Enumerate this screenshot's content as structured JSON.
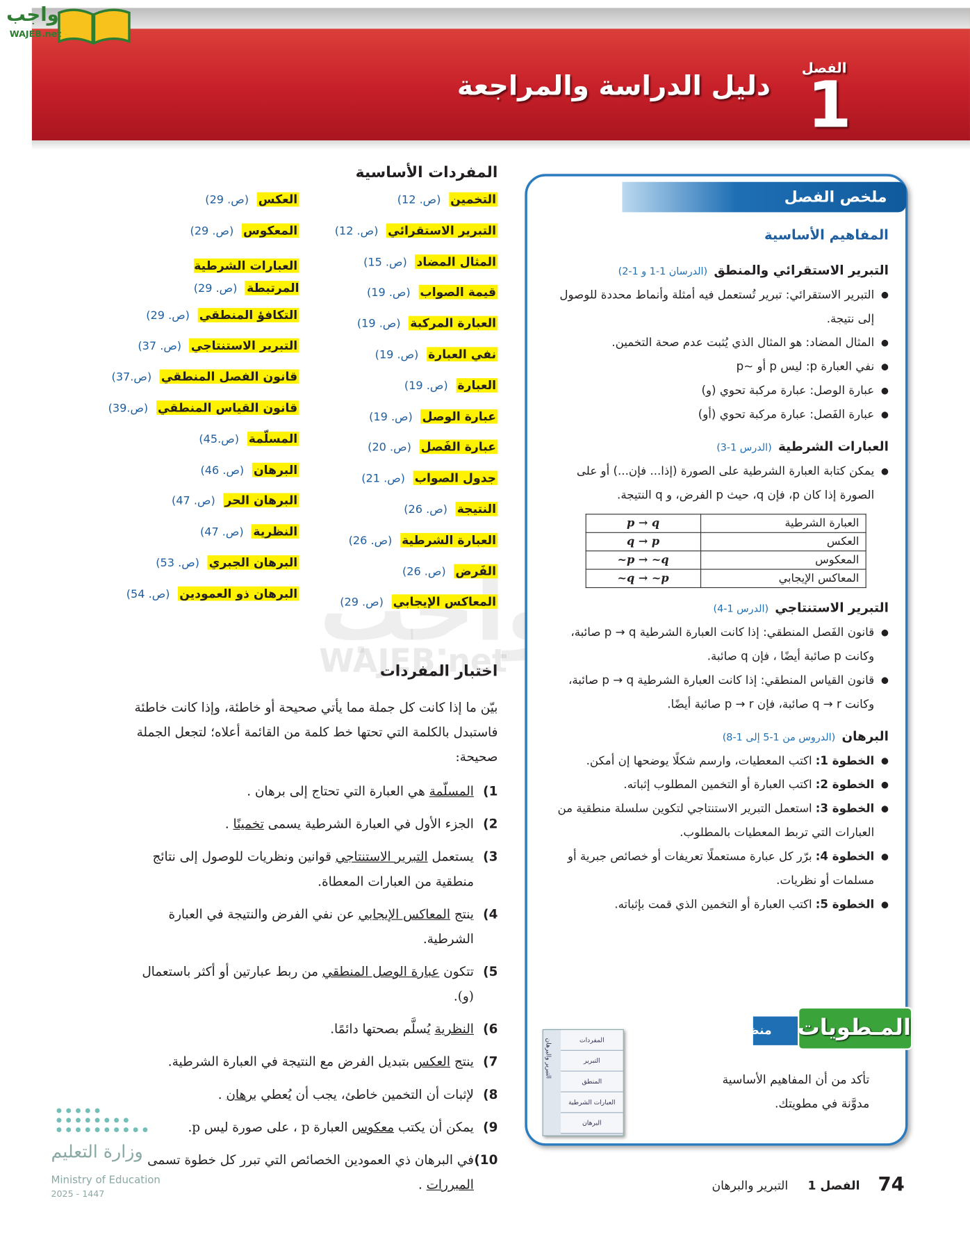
{
  "logo": {
    "text": "واجب",
    "site": "WAJEB.net"
  },
  "watermark": {
    "text": "واجب",
    "site": "WAJEB.net"
  },
  "header": {
    "chapter_label": "الفصل",
    "chapter_number": "1",
    "title": "دليل الدراسة والمراجعة"
  },
  "summary": {
    "title": "ملخص الفصل",
    "subtitle": "المفاهيم الأساسية",
    "sections": [
      {
        "heading": "التبرير الاستقرائي والمنطق",
        "ref": "(الدرسان 1-1 و 1-2)",
        "bullets": [
          "التبرير الاستقرائي: تبرير تُستعمل فيه أمثلة وأنماط محددة للوصول إلى نتيجة.",
          "المثال المضاد: هو المثال الذي يُثبت عدم صحة التخمين.",
          "نفي العبارة p: ليس p أو ~p",
          "عبارة الوصل: عبارة مركبة تحوي (و)",
          "عبارة الفَصل: عبارة مركبة تحوي (أو)"
        ]
      },
      {
        "heading": "العبارات الشرطية",
        "ref": "(الدرس 1-3)",
        "bullets": [
          "يمكن كتابة العبارة الشرطية على الصورة (إذا... فإن...) أو على الصورة إذا كان p، فإن q، حيث p الفرض، و q النتيجة."
        ],
        "table": [
          [
            "العبارة الشرطية",
            "p → q"
          ],
          [
            "العكس",
            "q → p"
          ],
          [
            "المعكوس",
            "~p → ~q"
          ],
          [
            "المعاكس الإيجابي",
            "~q → ~p"
          ]
        ]
      },
      {
        "heading": "التبرير الاستنتاجي",
        "ref": "(الدرس 1-4)",
        "bullets": [
          "قانون الفَصل المنطقي: إذا كانت العبارة الشرطية p → q صائبة، وكانت p صائبة أيضًا ، فإن q صائبة.",
          "قانون القياس المنطقي: إذا كانت العبارة الشرطية p → q صائبة، وكانت q → r صائبة، فإن p → r صائبة أيضًا."
        ]
      },
      {
        "heading": "البرهان",
        "ref": "(الدروس من 1-5 إلى 1-8)",
        "steps": [
          {
            "label": "الخطوة 1:",
            "text": "اكتب المعطيات، وارسم شكلًا يوضحها إن أمكن."
          },
          {
            "label": "الخطوة 2:",
            "text": "اكتب العبارة أو التخمين المطلوب إثباته."
          },
          {
            "label": "الخطوة 3:",
            "text": "استعمل التبرير الاستنتاجي لتكوين سلسلة منطقية من العبارات التي تربط المعطيات بالمطلوب."
          },
          {
            "label": "الخطوة 4:",
            "text": "برّر كل عبارة مستعملًا تعريفات أو خصائص جبرية أو مسلمات أو نظريات."
          },
          {
            "label": "الخطوة 5:",
            "text": "اكتب العبارة أو التخمين الذي قمت بإثباته."
          }
        ]
      }
    ]
  },
  "foldable": {
    "title": "المـطويات",
    "tag": "منظم أفكار",
    "text": "تأكد من أن المفاهيم الأساسية مدوَّنة في مطويتك.",
    "image_labels": [
      "المفردات",
      "التبرير",
      "المنطق",
      "العبارات الشرطية",
      "البرهان"
    ],
    "image_side": "التبرير والبرهان"
  },
  "vocabulary": {
    "title": "المفردات الأساسية",
    "columns": [
      [
        {
          "term": "التخمين",
          "page": "(ص. 12)"
        },
        {
          "term": "التبرير الاستقرائي",
          "page": "(ص. 12)"
        },
        {
          "term": "المثال المضاد",
          "page": "(ص. 15)"
        },
        {
          "term": "قيمة الصواب",
          "page": "(ص. 19)"
        },
        {
          "term": "العبارة المركبة",
          "page": "(ص. 19)"
        },
        {
          "term": "نفي العبارة",
          "page": "(ص. 19)"
        },
        {
          "term": "العبارة",
          "page": "(ص. 19)"
        },
        {
          "term": "عبارة الوصل",
          "page": "(ص. 19)"
        },
        {
          "term": "عبارة الفَصل",
          "page": "(ص. 20)"
        },
        {
          "term": "جدول الصواب",
          "page": "(ص. 21)"
        },
        {
          "term": "النتيجة",
          "page": "(ص. 26)"
        },
        {
          "term": "العبارة الشرطية",
          "page": "(ص. 26)"
        },
        {
          "term": "الفَرض",
          "page": "(ص. 26)"
        },
        {
          "term": "المعاكس الإيجابي",
          "page": "(ص. 29)"
        }
      ],
      [
        {
          "term": "العكس",
          "page": "(ص. 29)"
        },
        {
          "term": "المعكوس",
          "page": "(ص. 29)"
        },
        {
          "term": "العبارات الشرطية المرتبطة",
          "page": "(ص. 29)"
        },
        {
          "term": "التكافؤ المنطقي",
          "page": "(ص. 29)"
        },
        {
          "term": "التبرير الاستنتاجي",
          "page": "(ص. 37)"
        },
        {
          "term": "قانون الفصل المنطقي",
          "page": "(ص.37)"
        },
        {
          "term": "قانون القياس المنطقي",
          "page": "(ص.39)"
        },
        {
          "term": "المسلّمة",
          "page": "(ص.45)"
        },
        {
          "term": "البرهان",
          "page": "(ص. 46)"
        },
        {
          "term": "البرهان الحر",
          "page": "(ص. 47)"
        },
        {
          "term": "النظرية",
          "page": "(ص. 47)"
        },
        {
          "term": "البرهان الجبري",
          "page": "(ص. 53)"
        },
        {
          "term": "البرهان ذو العمودين",
          "page": "(ص. 54)"
        }
      ]
    ]
  },
  "quiz": {
    "title": "اختبار المفردات",
    "instructions": "بيّن ما إذا كانت كل جملة مما يأتي صحيحة أو خاطئة، وإذا كانت خاطئة فاستبدل بالكلمة التي تحتها خط كلمة من القائمة أعلاه؛ لتجعل الجملة صحيحة:",
    "items": [
      {
        "number": "1)",
        "underlined": "المسلّمة",
        "after": "هي العبارة التي تحتاج إلى برهان ."
      },
      {
        "number": "2)",
        "before": "الجزء الأول في العبارة الشرطية يسمى",
        "underlined": "تخمينًا",
        "after": "."
      },
      {
        "number": "3)",
        "before": "يستعمل",
        "underlined": "التبرير الاستنتاجي",
        "after": "قوانين ونظريات للوصول إلى نتائج منطقية من العبارات المعطاة."
      },
      {
        "number": "4)",
        "before": "ينتج",
        "underlined": "المعاكس الإيجابي",
        "after": "عن نفي الفرض والنتيجة في العبارة الشرطية."
      },
      {
        "number": "5)",
        "before": "تتكون",
        "underlined": "عبارة الوصل المنطقي",
        "after": "من ربط عبارتين أو أكثر باستعمال (و)."
      },
      {
        "number": "6)",
        "underlined": "النظرية",
        "after": "يُسلَّم بصحتها دائمًا."
      },
      {
        "number": "7)",
        "before": "ينتج",
        "underlined": "العكس",
        "after": "بتبديل الفرض مع النتيجة في العبارة الشرطية."
      },
      {
        "number": "8)",
        "before": "لإثبات أن التخمين خاطئ، يجب أن يُعطي",
        "underlined": "برهان",
        "after": "."
      },
      {
        "number": "9)",
        "before": "يمكن أن يكتب",
        "underlined": "معكوس",
        "after": "العبارة p ، على صورة ليس p."
      },
      {
        "number": "10)",
        "before": "في البرهان ذي العمودين الخصائص التي تبرر كل خطوة تسمى",
        "underlined": "المبررات",
        "after": "."
      }
    ]
  },
  "ministry": {
    "name_ar": "وزارة التعليم",
    "name_en": "Ministry of Education",
    "year": "2025 - 1447"
  },
  "footer": {
    "page_number": "74",
    "chapter": "الفصل 1",
    "chapter_title": "التبرير والبرهان"
  }
}
